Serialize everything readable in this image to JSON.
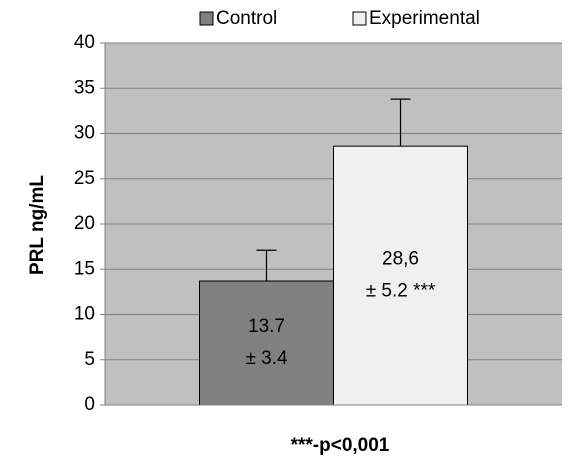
{
  "chart_data": {
    "type": "bar",
    "categories": [
      null
    ],
    "series": [
      {
        "name": "Control",
        "color": "#808080",
        "values": [
          13.7
        ],
        "errors": [
          3.4
        ],
        "value_labels": [
          "13.7"
        ],
        "error_labels": [
          "± 3.4"
        ]
      },
      {
        "name": "Experimental",
        "color": "#f0f0f0",
        "values": [
          28.6
        ],
        "errors": [
          5.2
        ],
        "value_labels": [
          "28,6"
        ],
        "error_labels": [
          "± 5.2 ***"
        ]
      }
    ],
    "y_label": "PRL ng/mL",
    "x_label": "***-p<0,001",
    "ylim": [
      0,
      40
    ],
    "yticks": [
      0,
      5,
      10,
      15,
      20,
      25,
      30,
      35,
      40
    ],
    "grid": true,
    "legend": "top",
    "plot_background": "#c0c0c0"
  }
}
